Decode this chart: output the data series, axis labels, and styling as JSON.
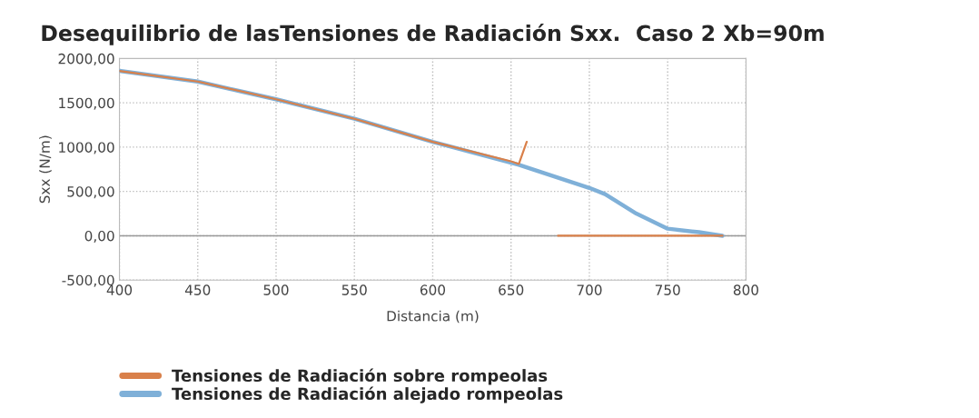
{
  "chart_data": {
    "type": "line",
    "title": "Desequilibrio de lasTensiones de Radiación Sxx.  Caso 2 Xb=90m",
    "xlabel": "Distancia (m)",
    "ylabel": "Sxx (N/m)",
    "series": [
      {
        "name": "Tensiones de Radiación sobre rompeolas",
        "color": "#d9804a",
        "x": [
          400,
          450,
          500,
          550,
          600,
          650,
          655,
          660,
          670,
          680,
          785
        ],
        "values": [
          1860,
          1740,
          1540,
          1320,
          1060,
          840,
          810,
          1060,
          null,
          0,
          0
        ]
      },
      {
        "name": "Tensiones de Radiación alejado rompeolas",
        "color": "#7fb0d8",
        "x": [
          400,
          450,
          480,
          500,
          550,
          600,
          655,
          700,
          710,
          730,
          750,
          770,
          785
        ],
        "values": [
          1860,
          1740,
          1620,
          1540,
          1320,
          1060,
          800,
          540,
          470,
          250,
          80,
          40,
          0
        ]
      }
    ],
    "xlim": [
      400,
      800
    ],
    "xticks": [
      400,
      450,
      500,
      550,
      600,
      650,
      700,
      750,
      800
    ],
    "ylim": [
      -500,
      2000
    ],
    "yticks": [
      {
        "value": -500,
        "label": "-500,00"
      },
      {
        "value": 0,
        "label": "0,00"
      },
      {
        "value": 500,
        "label": "500,00"
      },
      {
        "value": 1000,
        "label": "1000,00"
      },
      {
        "value": 1500,
        "label": "1500,00"
      },
      {
        "value": 2000,
        "label": "2000,00"
      }
    ],
    "grid": true,
    "legend": "bottom left"
  }
}
